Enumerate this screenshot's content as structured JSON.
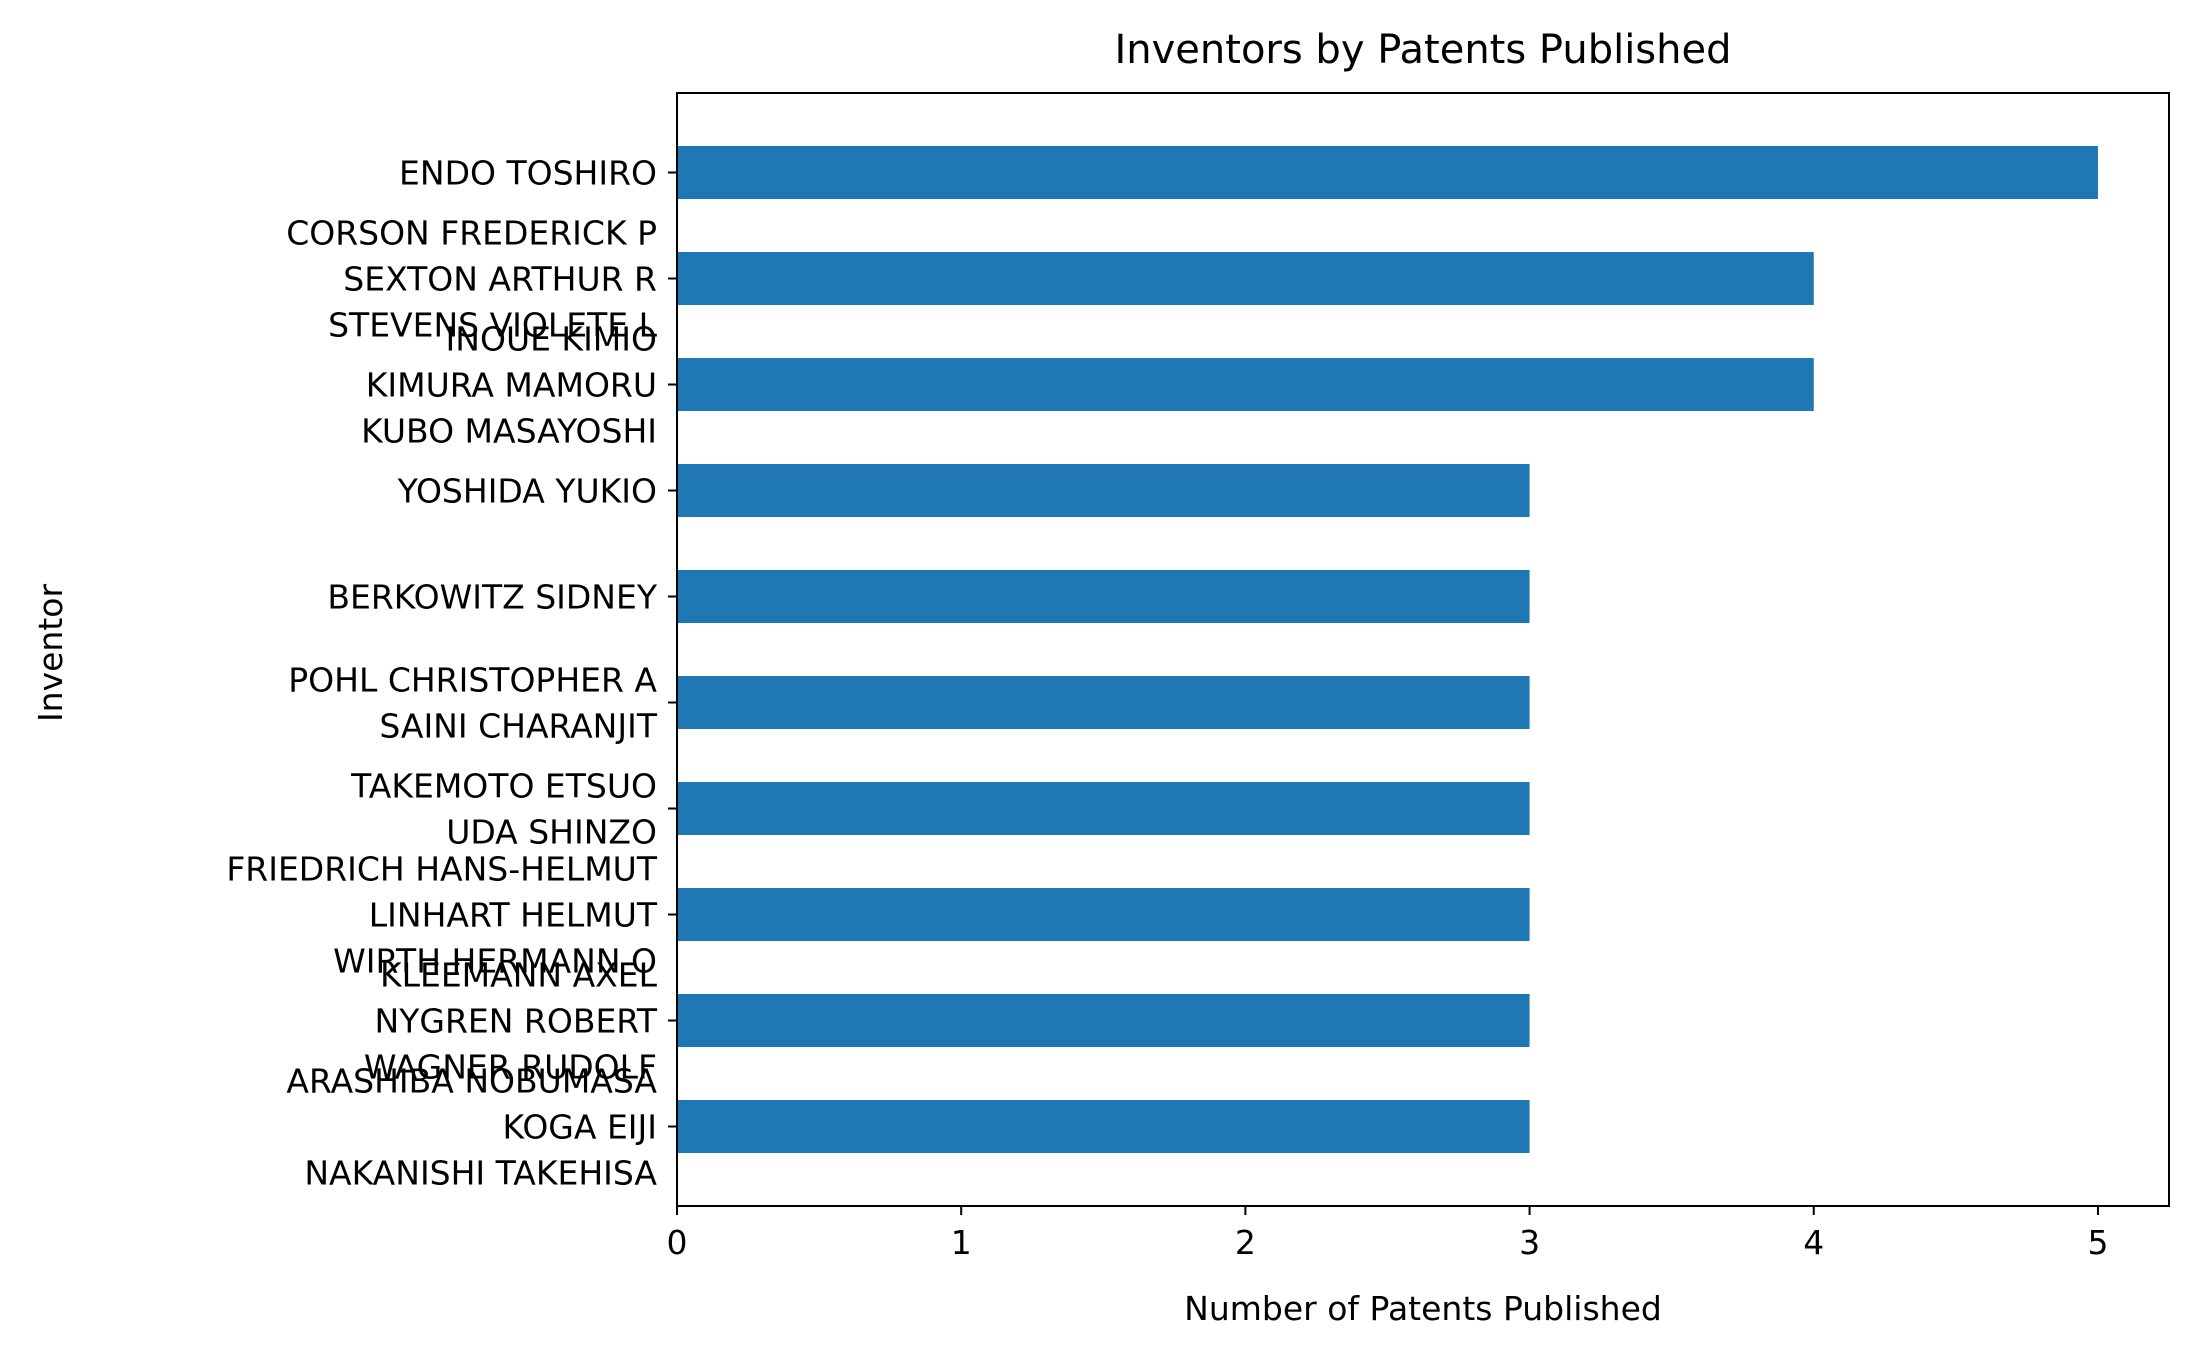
{
  "chart_data": {
    "type": "bar",
    "orientation": "horizontal",
    "title": "Inventors by Patents Published",
    "xlabel": "Number of Patents Published",
    "ylabel": "Inventor",
    "xlim": [
      0,
      5.25
    ],
    "xticks": [
      "0",
      "1",
      "2",
      "3",
      "4",
      "5"
    ],
    "bar_color": "#1f77b4",
    "categories": [
      [
        "ENDO TOSHIRO"
      ],
      [
        "CORSON FREDERICK P",
        "SEXTON ARTHUR R",
        "STEVENS VIOLETE L"
      ],
      [
        "INOUE KIMIO",
        "KIMURA MAMORU",
        "KUBO MASAYOSHI"
      ],
      [
        "YOSHIDA YUKIO"
      ],
      [
        "BERKOWITZ SIDNEY"
      ],
      [
        "POHL CHRISTOPHER A",
        "SAINI CHARANJIT"
      ],
      [
        "TAKEMOTO ETSUO",
        "UDA SHINZO"
      ],
      [
        "FRIEDRICH HANS-HELMUT",
        "LINHART HELMUT",
        "WIRTH HERMANN O"
      ],
      [
        "KLEEMANN AXEL",
        "NYGREN ROBERT",
        "WAGNER RUDOLF"
      ],
      [
        "ARASHIBA NOBUMASA",
        "KOGA EIJI",
        "NAKANISHI TAKEHISA"
      ]
    ],
    "values": [
      5,
      4,
      4,
      3,
      3,
      3,
      3,
      3,
      3,
      3
    ],
    "grid": false,
    "legend": "none"
  }
}
